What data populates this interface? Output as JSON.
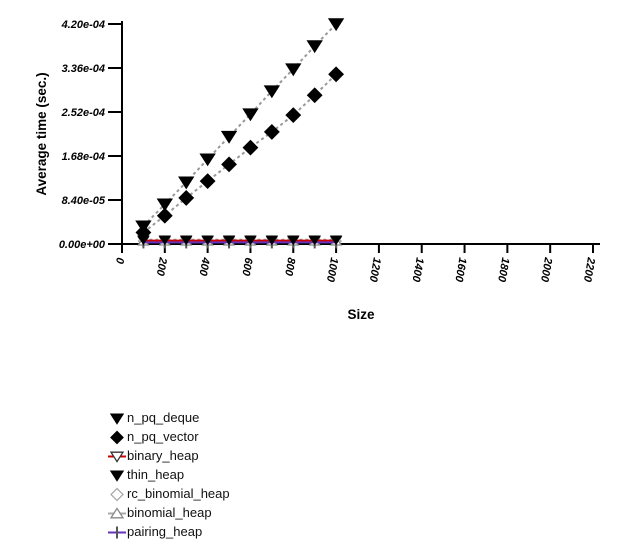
{
  "chart_data": {
    "type": "line",
    "title": "",
    "xlabel": "Size",
    "ylabel": "Average time (sec.)",
    "xlim": [
      0,
      2200
    ],
    "ylim": [
      0,
      0.00042
    ],
    "grid": false,
    "legend_position": "below-left",
    "x_ticks": [
      {
        "value": 0,
        "label": "0"
      },
      {
        "value": 200,
        "label": "200"
      },
      {
        "value": 400,
        "label": "400"
      },
      {
        "value": 600,
        "label": "600"
      },
      {
        "value": 800,
        "label": "800"
      },
      {
        "value": 1000,
        "label": "1000"
      },
      {
        "value": 1200,
        "label": "1200"
      },
      {
        "value": 1400,
        "label": "1400"
      },
      {
        "value": 1600,
        "label": "1600"
      },
      {
        "value": 1800,
        "label": "1800"
      },
      {
        "value": 2000,
        "label": "2000"
      },
      {
        "value": 2200,
        "label": "2200"
      }
    ],
    "y_ticks": [
      {
        "value": 0.0,
        "label": "0.00e+00"
      },
      {
        "value": 8.4e-05,
        "label": "8.40e-05"
      },
      {
        "value": 0.000168,
        "label": "1.68e-04"
      },
      {
        "value": 0.000252,
        "label": "2.52e-04"
      },
      {
        "value": 0.000336,
        "label": "3.36e-04"
      },
      {
        "value": 0.00042,
        "label": "4.20e-04"
      }
    ],
    "x_values": [
      100,
      200,
      300,
      400,
      500,
      600,
      700,
      800,
      900,
      1000
    ],
    "series": [
      {
        "name": "n_pq_deque",
        "marker": "tri-down",
        "filled": true,
        "marker_color": "#000000",
        "marker_size": 7,
        "line_style": "dashed",
        "line_color": "#999999",
        "legend_line": false,
        "values": [
          3.4e-05,
          7.6e-05,
          0.000118,
          0.000162,
          0.000205,
          0.000248,
          0.000292,
          0.000334,
          0.000378,
          0.00042
        ]
      },
      {
        "name": "n_pq_vector",
        "marker": "diamond",
        "filled": true,
        "marker_color": "#000000",
        "marker_size": 7,
        "line_style": "dashed",
        "line_color": "#999999",
        "legend_line": false,
        "values": [
          2.2e-05,
          5.4e-05,
          8.8e-05,
          0.00012,
          0.000152,
          0.000184,
          0.000214,
          0.000246,
          0.000284,
          0.000324
        ]
      },
      {
        "name": "binary_heap",
        "marker": "tri-down",
        "filled": false,
        "marker_color": "#333333",
        "marker_size": 5,
        "line_style": "solid",
        "line_color": "#cc0000",
        "legend_line": true,
        "values": [
          6.5e-06,
          6.5e-06,
          6.5e-06,
          6.5e-06,
          6.5e-06,
          6.5e-06,
          6.5e-06,
          6.5e-06,
          6.5e-06,
          6.5e-06
        ]
      },
      {
        "name": "thin_heap",
        "marker": "tri-down",
        "filled": true,
        "marker_color": "#000000",
        "marker_size": 5,
        "line_style": "dashed",
        "line_color": "#999999",
        "legend_line": false,
        "values": [
          8e-06,
          8e-06,
          8e-06,
          8e-06,
          8e-06,
          8e-06,
          8e-06,
          8e-06,
          8e-06,
          8e-06
        ]
      },
      {
        "name": "rc_binomial_heap",
        "marker": "diamond",
        "filled": false,
        "marker_color": "#aaaaaa",
        "marker_size": 5,
        "line_style": "dashed",
        "line_color": "#bbbbbb",
        "legend_line": false,
        "values": [
          5.5e-06,
          5.5e-06,
          5.5e-06,
          5.5e-06,
          5.5e-06,
          5.5e-06,
          5.5e-06,
          5.5e-06,
          5.5e-06,
          5.5e-06
        ]
      },
      {
        "name": "binomial_heap",
        "marker": "tri-up",
        "filled": false,
        "marker_color": "#888888",
        "marker_size": 5,
        "line_style": "dashed",
        "line_color": "#aaaaaa",
        "legend_line": true,
        "values": [
          5e-06,
          5e-06,
          5e-06,
          5e-06,
          5e-06,
          5e-06,
          5e-06,
          5e-06,
          5e-06,
          5e-06
        ]
      },
      {
        "name": "pairing_heap",
        "marker": "plus",
        "filled": false,
        "marker_color": "#555555",
        "marker_size": 6,
        "line_style": "solid",
        "line_color": "#6633bb",
        "legend_line": true,
        "values": [
          3e-06,
          3e-06,
          3e-06,
          3e-06,
          3e-06,
          3e-06,
          3e-06,
          3e-06,
          3e-06,
          3e-06
        ]
      }
    ]
  }
}
